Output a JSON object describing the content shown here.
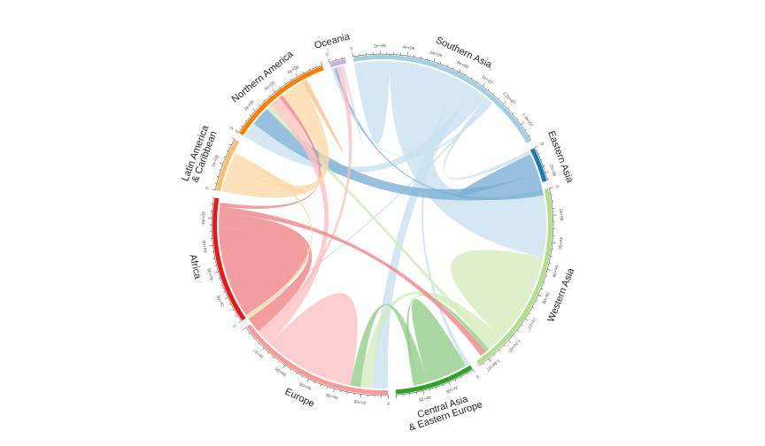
{
  "chart_data": {
    "type": "chord",
    "title": "",
    "sectors": [
      {
        "name": "Southern Asia",
        "label_lines": [
          "Southern Asia"
        ],
        "total": 15400000,
        "color": "#A6CEE3",
        "band_color": "#C9E0EF"
      },
      {
        "name": "Eastern Asia",
        "label_lines": [
          "Eastern Asia"
        ],
        "total": 2600000,
        "color": "#1F78B4",
        "band_color": "#79AED3"
      },
      {
        "name": "Western Asia",
        "label_lines": [
          "Western Asia"
        ],
        "total": 14800000,
        "color": "#B2DF8A",
        "band_color": "#D4ECBD"
      },
      {
        "name": "Central Asia & Eastern Europe",
        "label_lines": [
          "Central Asia",
          "& Eastern Europe"
        ],
        "total": 6000000,
        "color": "#33A02C",
        "band_color": "#8FCC88"
      },
      {
        "name": "Europe",
        "label_lines": [
          "Europe"
        ],
        "total": 12000000,
        "color": "#FB9A99",
        "band_color": "#FCC0BF"
      },
      {
        "name": "Africa",
        "label_lines": [
          "Africa"
        ],
        "total": 9500000,
        "color": "#E31A1C",
        "band_color": "#EE8384"
      },
      {
        "name": "Latin America & Caribbean",
        "label_lines": [
          "Latin America",
          "& Caribbean"
        ],
        "total": 4000000,
        "color": "#FDBF6F",
        "band_color": "#FDD8A8"
      },
      {
        "name": "Northern America",
        "label_lines": [
          "Northern America"
        ],
        "total": 8000000,
        "color": "#FF7F00",
        "band_color": "#FDC28C"
      },
      {
        "name": "Oceania",
        "label_lines": [
          "Oceania"
        ],
        "total": 1200000,
        "color": "#CAB2D6",
        "band_color": "#E2D5EA"
      }
    ],
    "tick_labels": {
      "Southern Asia": [
        "0",
        "2e+06",
        "4e+06",
        "6e+06",
        "8e+06",
        "1e+07",
        "1.2e+07",
        "1.4e+07"
      ],
      "Eastern Asia": [
        "0",
        "2e+06"
      ],
      "Western Asia": [
        "0",
        "2e+06",
        "4e+06",
        "6e+06",
        "8e+06",
        "1e+07",
        "1.2e+07",
        "1.4e+07"
      ],
      "Central Asia & Eastern Europe": [
        "0",
        "2e+06",
        "4e+06"
      ],
      "Europe": [
        "0",
        "2e+06",
        "4e+06",
        "6e+06",
        "8e+06",
        "1e+07"
      ],
      "Africa": [
        "0",
        "2e+06",
        "4e+06",
        "6e+06",
        "8e+06"
      ],
      "Latin America & Caribbean": [
        "0",
        "2e+06"
      ],
      "Northern America": [
        "0",
        "2e+06",
        "4e+06",
        "6e+06"
      ],
      "Oceania": [
        "0"
      ]
    },
    "flows": [
      {
        "from": "Southern Asia",
        "to": "Southern Asia",
        "value": 1400000
      },
      {
        "from": "Southern Asia",
        "to": "Western Asia",
        "value": 5200000
      },
      {
        "from": "Southern Asia",
        "to": "Central Asia & Eastern Europe",
        "value": 300000
      },
      {
        "from": "Southern Asia",
        "to": "Europe",
        "value": 1200000
      },
      {
        "from": "Southern Asia",
        "to": "Northern America",
        "value": 1200000
      },
      {
        "from": "Southern Asia",
        "to": "Eastern Asia",
        "value": 300000
      },
      {
        "from": "Southern Asia",
        "to": "Africa",
        "value": 200000
      },
      {
        "from": "Southern Asia",
        "to": "Oceania",
        "value": 200000
      },
      {
        "from": "Eastern Asia",
        "to": "Eastern Asia",
        "value": 800000
      },
      {
        "from": "Eastern Asia",
        "to": "Northern America",
        "value": 1500000
      },
      {
        "from": "Eastern Asia",
        "to": "Oceania",
        "value": 200000
      },
      {
        "from": "Western Asia",
        "to": "Western Asia",
        "value": 3500000
      },
      {
        "from": "Western Asia",
        "to": "Europe",
        "value": 900000
      },
      {
        "from": "Western Asia",
        "to": "Northern America",
        "value": 400000
      },
      {
        "from": "Central Asia & Eastern Europe",
        "to": "Central Asia & Eastern Europe",
        "value": 1600000
      },
      {
        "from": "Central Asia & Eastern Europe",
        "to": "Europe",
        "value": 800000
      },
      {
        "from": "Central Asia & Eastern Europe",
        "to": "Western Asia",
        "value": 300000
      },
      {
        "from": "Europe",
        "to": "Europe",
        "value": 3500000
      },
      {
        "from": "Europe",
        "to": "Northern America",
        "value": 900000
      },
      {
        "from": "Europe",
        "to": "Oceania",
        "value": 400000
      },
      {
        "from": "Africa",
        "to": "Africa",
        "value": 3500000
      },
      {
        "from": "Africa",
        "to": "Europe",
        "value": 1200000
      },
      {
        "from": "Africa",
        "to": "Western Asia",
        "value": 500000
      },
      {
        "from": "Africa",
        "to": "Northern America",
        "value": 300000
      },
      {
        "from": "Latin America & Caribbean",
        "to": "Northern America",
        "value": 1800000
      },
      {
        "from": "Latin America & Caribbean",
        "to": "Latin America & Caribbean",
        "value": 500000
      },
      {
        "from": "Latin America & Caribbean",
        "to": "Europe",
        "value": 300000
      },
      {
        "from": "Northern America",
        "to": "Northern America",
        "value": 200000
      },
      {
        "from": "Oceania",
        "to": "Oceania",
        "value": 100000
      }
    ]
  }
}
